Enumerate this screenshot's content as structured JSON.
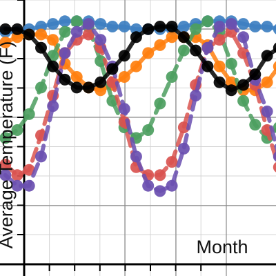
{
  "chart_data": {
    "type": "line",
    "title": "",
    "xlabel": "Month",
    "ylabel": "Average Temperature (F)",
    "grid": true,
    "legend": "none",
    "x": [
      1,
      2,
      3,
      4,
      5,
      6,
      7,
      8,
      9,
      10,
      11,
      12,
      13,
      14,
      15,
      16,
      17,
      18,
      19,
      20,
      21,
      22,
      23,
      24,
      25
    ],
    "xlim": [
      0.55,
      23.75
    ],
    "ylim": [
      -28,
      76
    ],
    "series": [
      {
        "color": "#3d7fc1",
        "values": [
          64,
          64,
          65,
          66,
          67,
          68,
          68,
          68,
          67,
          66,
          66,
          65,
          65,
          65,
          65,
          66,
          67,
          68,
          68,
          68,
          67,
          66,
          66,
          65,
          65
        ]
      },
      {
        "color": "#ff7f0e",
        "values": [
          60,
          62,
          63,
          63,
          61,
          52,
          47,
          43,
          42,
          44,
          47,
          51,
          56,
          59,
          62,
          62,
          62,
          59,
          51,
          45,
          42,
          42,
          45,
          51,
          55
        ]
      },
      {
        "color": "#4c9e5f",
        "values": [
          24,
          27,
          33,
          43,
          55,
          64,
          68,
          66,
          53,
          38,
          28,
          24,
          27,
          37,
          47,
          57,
          65,
          68,
          64,
          52,
          38,
          29,
          24,
          28,
          37
        ]
      },
      {
        "color": "#d9534f",
        "values": [
          14,
          10,
          12,
          25,
          40,
          56,
          61,
          63,
          58,
          45,
          30,
          13,
          10,
          10,
          15,
          28,
          44,
          58,
          61,
          64,
          56,
          44,
          27,
          13,
          9
        ]
      },
      {
        "color": "#6a4fb0",
        "values": [
          10,
          6,
          6,
          17,
          36,
          56,
          64,
          67,
          61,
          51,
          35,
          17,
          6,
          4,
          6,
          20,
          40,
          58,
          66,
          67,
          62,
          46,
          34,
          17,
          8
        ]
      },
      {
        "color": "#000000",
        "values": [
          65,
          65,
          63,
          58,
          51,
          46,
          43,
          43,
          45,
          50,
          55,
          62,
          65,
          66,
          66,
          62,
          57,
          51,
          45,
          42,
          44,
          48,
          55,
          58,
          64
        ]
      }
    ]
  }
}
